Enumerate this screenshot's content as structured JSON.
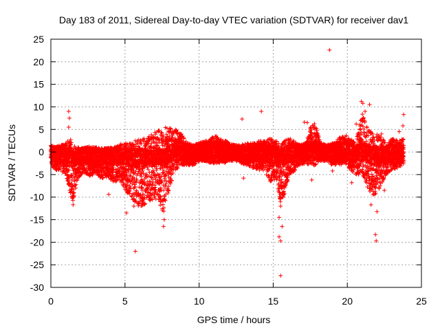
{
  "chart_data": {
    "type": "scatter",
    "title": "Day 183 of 2011, Sidereal Day-to-day VTEC variation (SDTVAR) for receiver dav1",
    "xlabel": "GPS time / hours",
    "ylabel": "SDTVAR / TECUs",
    "xlim": [
      0,
      25
    ],
    "ylim": [
      -30,
      25
    ],
    "xticks": [
      0,
      5,
      10,
      15,
      20,
      25
    ],
    "yticks": [
      -30,
      -25,
      -20,
      -15,
      -10,
      -5,
      0,
      5,
      10,
      15,
      20,
      25
    ],
    "xtick_labels": [
      "0",
      "5",
      "10",
      "15",
      "20",
      "25"
    ],
    "ytick_labels": [
      "-30",
      "-25",
      "-20",
      "-15",
      "-10",
      "-5",
      "0",
      "5",
      "10",
      "15",
      "20",
      "25"
    ],
    "grid": true,
    "marker": "+",
    "color": "#ff0000",
    "series": [
      {
        "name": "dav1",
        "envelope": {
          "description": "upper and lower bounds of the dense point band",
          "x": [
            0.0,
            0.3,
            0.6,
            1.0,
            1.3,
            1.5,
            1.8,
            2.2,
            2.6,
            3.0,
            3.4,
            3.8,
            4.2,
            4.6,
            5.0,
            5.3,
            5.6,
            5.9,
            6.2,
            6.6,
            7.0,
            7.3,
            7.6,
            8.0,
            8.4,
            8.8,
            9.2,
            9.6,
            10.0,
            10.4,
            10.8,
            11.2,
            11.6,
            12.0,
            12.4,
            12.8,
            13.2,
            13.6,
            14.0,
            14.4,
            14.8,
            15.2,
            15.5,
            15.8,
            16.1,
            16.4,
            16.8,
            17.2,
            17.5,
            17.8,
            18.2,
            18.6,
            19.0,
            19.4,
            19.8,
            20.2,
            20.6,
            21.0,
            21.4,
            21.8,
            22.2,
            22.6,
            23.0,
            23.4,
            23.8
          ],
          "upper": [
            1.5,
            1.0,
            1.5,
            2.0,
            3.0,
            1.5,
            1.0,
            0.8,
            1.2,
            1.0,
            0.8,
            0.8,
            1.0,
            1.5,
            2.5,
            2.0,
            2.5,
            3.0,
            3.0,
            3.5,
            4.5,
            5.0,
            5.5,
            5.5,
            5.0,
            4.0,
            2.0,
            1.5,
            2.0,
            2.5,
            3.0,
            4.0,
            3.0,
            2.0,
            1.5,
            1.5,
            2.0,
            2.0,
            2.5,
            2.5,
            3.0,
            2.5,
            2.0,
            2.5,
            3.0,
            2.5,
            1.5,
            2.0,
            6.0,
            6.5,
            2.0,
            1.5,
            2.0,
            3.0,
            4.0,
            3.0,
            2.5,
            8.5,
            5.0,
            4.0,
            4.0,
            2.0,
            3.0,
            2.5,
            3.0
          ],
          "lower": [
            -3.0,
            -4.0,
            -4.0,
            -5.0,
            -9.0,
            -11.0,
            -6.0,
            -5.0,
            -5.5,
            -5.0,
            -6.0,
            -5.5,
            -7.0,
            -6.0,
            -8.5,
            -10.0,
            -11.0,
            -12.0,
            -12.0,
            -11.0,
            -10.5,
            -11.0,
            -14.0,
            -8.0,
            -4.0,
            -3.0,
            -3.0,
            -3.0,
            -2.0,
            -2.0,
            -2.5,
            -2.5,
            -2.5,
            -2.0,
            -2.0,
            -2.5,
            -3.0,
            -3.5,
            -4.0,
            -4.5,
            -6.5,
            -6.0,
            -11.5,
            -9.0,
            -5.0,
            -4.5,
            -3.0,
            -2.5,
            -3.0,
            -3.0,
            -2.0,
            -2.0,
            -3.0,
            -3.0,
            -2.5,
            -4.0,
            -5.0,
            -5.0,
            -8.5,
            -10.0,
            -8.0,
            -5.0,
            -4.0,
            -3.5,
            -3.0
          ]
        },
        "outliers": [
          {
            "x": 18.8,
            "y": 22.6
          },
          {
            "x": 14.2,
            "y": 9.0
          },
          {
            "x": 12.9,
            "y": 7.3
          },
          {
            "x": 1.2,
            "y": 9.0
          },
          {
            "x": 1.25,
            "y": 7.5
          },
          {
            "x": 1.2,
            "y": 5.5
          },
          {
            "x": 20.95,
            "y": 11.2
          },
          {
            "x": 21.05,
            "y": 10.8
          },
          {
            "x": 21.5,
            "y": 10.5
          },
          {
            "x": 21.2,
            "y": 9.0
          },
          {
            "x": 23.8,
            "y": 8.3
          },
          {
            "x": 23.75,
            "y": 5.8
          },
          {
            "x": 20.9,
            "y": 7.0
          },
          {
            "x": 17.1,
            "y": 6.6
          },
          {
            "x": 17.3,
            "y": 6.5
          },
          {
            "x": 20.6,
            "y": 6.2
          },
          {
            "x": 21.7,
            "y": 4.0
          },
          {
            "x": 22.3,
            "y": 4.0
          },
          {
            "x": 23.5,
            "y": 4.5
          },
          {
            "x": 1.5,
            "y": -11.7
          },
          {
            "x": 5.1,
            "y": -13.5
          },
          {
            "x": 5.7,
            "y": -22.0
          },
          {
            "x": 5.6,
            "y": -12.0
          },
          {
            "x": 7.6,
            "y": -16.5
          },
          {
            "x": 7.65,
            "y": -15.0
          },
          {
            "x": 3.9,
            "y": -9.4
          },
          {
            "x": 15.5,
            "y": -27.4
          },
          {
            "x": 15.5,
            "y": -19.7
          },
          {
            "x": 15.4,
            "y": -18.8
          },
          {
            "x": 15.6,
            "y": -16.5
          },
          {
            "x": 15.4,
            "y": -14.5
          },
          {
            "x": 15.5,
            "y": -12.0
          },
          {
            "x": 13.0,
            "y": -5.8
          },
          {
            "x": 17.6,
            "y": -6.2
          },
          {
            "x": 19.0,
            "y": -4.2
          },
          {
            "x": 20.3,
            "y": -6.8
          },
          {
            "x": 21.6,
            "y": -11.7
          },
          {
            "x": 22.0,
            "y": -13.2
          },
          {
            "x": 21.9,
            "y": -18.3
          },
          {
            "x": 21.95,
            "y": -19.7
          },
          {
            "x": 22.5,
            "y": -8.5
          }
        ]
      }
    ]
  }
}
